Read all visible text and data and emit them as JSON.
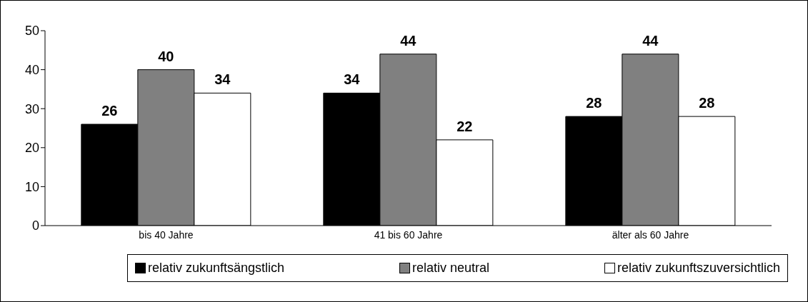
{
  "chart_data": {
    "type": "bar",
    "categories": [
      "bis 40 Jahre",
      "41 bis 60 Jahre",
      "älter als 60 Jahre"
    ],
    "series": [
      {
        "name": "relativ zukunftsängstlich",
        "color": "#000000",
        "values": [
          26,
          34,
          28
        ]
      },
      {
        "name": "relativ neutral",
        "color": "#808080",
        "values": [
          40,
          44,
          44
        ]
      },
      {
        "name": "relativ zukunftszuversichtlich",
        "color": "#ffffff",
        "values": [
          34,
          22,
          28
        ]
      }
    ],
    "ylim": [
      0,
      50
    ],
    "yticks": [
      0,
      10,
      20,
      30,
      40,
      50
    ],
    "grid": false,
    "legend": "bottom",
    "data_labels": true
  }
}
